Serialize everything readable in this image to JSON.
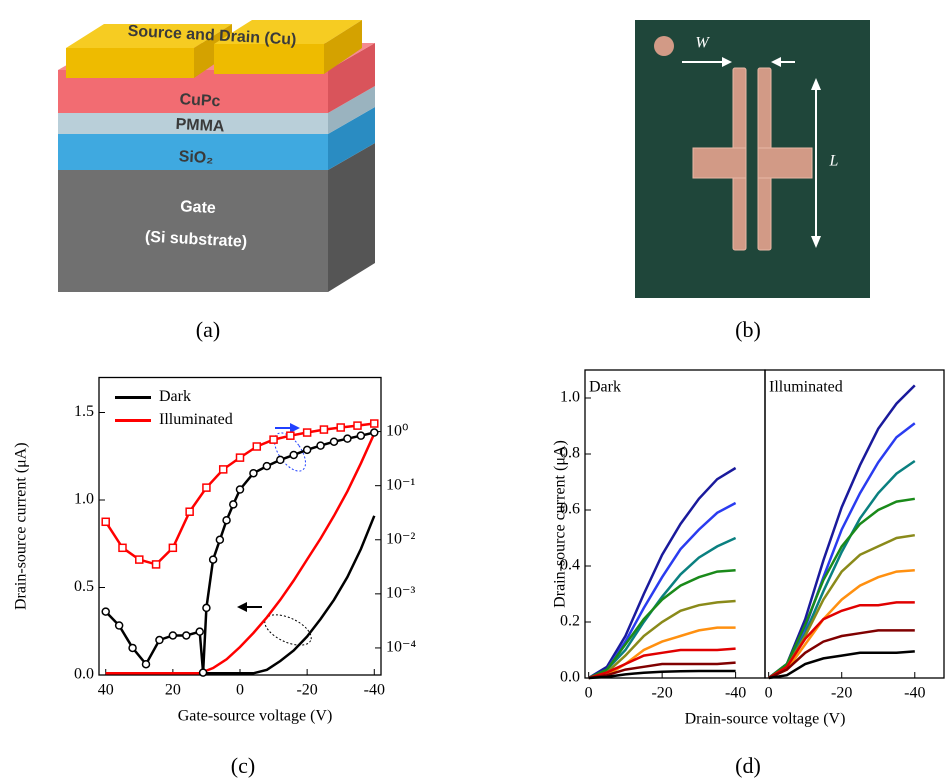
{
  "figure": {
    "a": {
      "labels": {
        "electrodes": "Source and Drain (Cu)",
        "semiconductor": "CuPc",
        "buffer": "PMMA",
        "dielectric": "SiO₂",
        "gate": "Gate",
        "gate_material": "(Si substrate)"
      },
      "caption": "(a)"
    },
    "b": {
      "labels": {
        "width": "W",
        "length": "L"
      },
      "caption": "(b)"
    },
    "c": {
      "caption": "(c)"
    },
    "d": {
      "caption": "(d)"
    }
  },
  "chart_data": [
    {
      "type": "line",
      "xlabel": "Gate-source voltage (V)",
      "ylabel": "Drain-source current (μA)",
      "xlim": [
        42,
        -42
      ],
      "xticks": [
        40,
        20,
        0,
        -20,
        -40
      ],
      "ylim": [
        0,
        1.7
      ],
      "yticks": [
        {
          "value": 0,
          "label": "0.0"
        },
        0.5,
        {
          "value": 1,
          "label": "1.0"
        },
        1.5
      ],
      "y2lim": [
        3.16e-05,
        10
      ],
      "y2scale": "log",
      "y2ticks": [
        {
          "value": 0.0001,
          "label": "10⁻⁴"
        },
        {
          "value": 0.001,
          "label": "10⁻³"
        },
        {
          "value": 0.01,
          "label": "10⁻²"
        },
        {
          "value": 0.1,
          "label": "10⁻¹"
        },
        {
          "value": 1,
          "label": "10⁰"
        }
      ],
      "legend": "upper left",
      "series": [
        {
          "name": "Dark",
          "color": "#000000",
          "axis": "y",
          "x": [
            40,
            36,
            32,
            28,
            24,
            20,
            16,
            12,
            8,
            4,
            0,
            -4,
            -8,
            -12,
            -16,
            -20,
            -24,
            -28,
            -32,
            -36,
            -40
          ],
          "values": [
            0.01,
            0.01,
            0.01,
            0.01,
            0.01,
            0.01,
            0.01,
            0.01,
            0.01,
            0.01,
            0.01,
            0.01,
            0.03,
            0.08,
            0.14,
            0.22,
            0.32,
            0.43,
            0.56,
            0.72,
            0.91
          ]
        },
        {
          "name": "Illuminated",
          "color": "#ff0000",
          "axis": "y",
          "x": [
            40,
            36,
            32,
            28,
            24,
            20,
            16,
            12,
            8,
            4,
            0,
            -4,
            -8,
            -12,
            -16,
            -20,
            -24,
            -28,
            -32,
            -36,
            -40
          ],
          "values": [
            0.01,
            0.01,
            0.01,
            0.01,
            0.01,
            0.01,
            0.01,
            0.01,
            0.04,
            0.09,
            0.16,
            0.24,
            0.33,
            0.43,
            0.54,
            0.66,
            0.78,
            0.91,
            1.05,
            1.21,
            1.38
          ]
        },
        {
          "color": "#000000",
          "axis": "y2",
          "marker": "circle",
          "x": [
            40,
            36,
            32,
            28,
            24,
            20,
            16,
            12,
            11,
            10,
            8,
            6,
            4,
            2,
            0,
            -4,
            -8,
            -12,
            -16,
            -20,
            -24,
            -28,
            -32,
            -36,
            -40
          ],
          "values": [
            0.00047,
            0.00026,
            0.0001,
            5e-05,
            0.00014,
            0.00017,
            0.00017,
            0.0002,
            3.5e-05,
            0.00055,
            0.0043,
            0.01,
            0.023,
            0.045,
            0.085,
            0.17,
            0.23,
            0.3,
            0.37,
            0.46,
            0.55,
            0.65,
            0.74,
            0.84,
            0.96
          ]
        },
        {
          "color": "#ff0000",
          "axis": "y2",
          "marker": "square",
          "x": [
            40,
            35,
            30,
            25,
            20,
            15,
            10,
            5,
            0,
            -5,
            -10,
            -15,
            -20,
            -25,
            -30,
            -35,
            -40
          ],
          "values": [
            0.0215,
            0.0071,
            0.0043,
            0.0035,
            0.0071,
            0.033,
            0.092,
            0.2,
            0.33,
            0.53,
            0.71,
            0.84,
            0.96,
            1.09,
            1.19,
            1.29,
            1.41
          ]
        }
      ]
    },
    {
      "type": "line",
      "title": "Dark",
      "xlabel": "Drain-source voltage (V)",
      "ylabel": "Drain-source current (μA)",
      "xlim": [
        1,
        -48
      ],
      "xticks": [
        0,
        -20,
        -40
      ],
      "ylim": [
        0,
        1.1
      ],
      "yticks": [
        {
          "value": 0,
          "label": "0.0"
        },
        0.2,
        0.4,
        0.6,
        0.8,
        {
          "value": 1,
          "label": "1.0"
        }
      ],
      "x": [
        0,
        -5,
        -10,
        -15,
        -20,
        -25,
        -30,
        -35,
        -40
      ],
      "series": [
        {
          "color": "#1a1a9c",
          "values": [
            0,
            0.04,
            0.15,
            0.3,
            0.44,
            0.55,
            0.64,
            0.71,
            0.75
          ]
        },
        {
          "color": "#2a3cf0",
          "values": [
            0,
            0.03,
            0.13,
            0.25,
            0.36,
            0.46,
            0.53,
            0.59,
            0.625
          ]
        },
        {
          "color": "#0a8080",
          "values": [
            0,
            0.03,
            0.1,
            0.2,
            0.29,
            0.37,
            0.43,
            0.47,
            0.5
          ]
        },
        {
          "color": "#1a8a1a",
          "values": [
            0,
            0.03,
            0.12,
            0.21,
            0.28,
            0.33,
            0.36,
            0.38,
            0.385
          ]
        },
        {
          "color": "#8a8a1a",
          "values": [
            0,
            0.02,
            0.08,
            0.15,
            0.2,
            0.24,
            0.26,
            0.27,
            0.275
          ]
        },
        {
          "color": "#ff9010",
          "values": [
            0,
            0.01,
            0.05,
            0.1,
            0.13,
            0.15,
            0.17,
            0.18,
            0.18
          ]
        },
        {
          "color": "#e00000",
          "values": [
            0,
            0.02,
            0.05,
            0.08,
            0.09,
            0.1,
            0.1,
            0.1,
            0.105
          ]
        },
        {
          "color": "#800000",
          "values": [
            0,
            0.01,
            0.03,
            0.04,
            0.05,
            0.05,
            0.05,
            0.05,
            0.055
          ]
        },
        {
          "color": "#000000",
          "values": [
            0,
            0.004,
            0.013,
            0.019,
            0.022,
            0.024,
            0.025,
            0.025,
            0.025
          ]
        }
      ]
    },
    {
      "type": "line",
      "title": "Illuminated",
      "xlim": [
        1,
        -48
      ],
      "xticks": [
        0,
        -20,
        -40
      ],
      "ylim": [
        0,
        1.1
      ],
      "x": [
        0,
        -5,
        -10,
        -15,
        -20,
        -25,
        -30,
        -35,
        -40
      ],
      "series": [
        {
          "color": "#1a1a9c",
          "values": [
            0,
            0.05,
            0.21,
            0.42,
            0.61,
            0.76,
            0.89,
            0.98,
            1.045
          ]
        },
        {
          "color": "#2a3cf0",
          "values": [
            0,
            0.05,
            0.18,
            0.36,
            0.53,
            0.66,
            0.77,
            0.86,
            0.91
          ]
        },
        {
          "color": "#0a8080",
          "values": [
            0,
            0.04,
            0.16,
            0.31,
            0.45,
            0.57,
            0.66,
            0.73,
            0.775
          ]
        },
        {
          "color": "#1a8a1a",
          "values": [
            0,
            0.05,
            0.19,
            0.35,
            0.47,
            0.55,
            0.6,
            0.63,
            0.64
          ]
        },
        {
          "color": "#8a8a1a",
          "values": [
            0,
            0.04,
            0.15,
            0.28,
            0.38,
            0.44,
            0.47,
            0.5,
            0.51
          ]
        },
        {
          "color": "#ff9010",
          "values": [
            0,
            0.03,
            0.12,
            0.21,
            0.28,
            0.33,
            0.36,
            0.38,
            0.385
          ]
        },
        {
          "color": "#e00000",
          "values": [
            0,
            0.04,
            0.14,
            0.21,
            0.24,
            0.26,
            0.26,
            0.27,
            0.27
          ]
        },
        {
          "color": "#800000",
          "values": [
            0,
            0.03,
            0.09,
            0.13,
            0.15,
            0.16,
            0.17,
            0.17,
            0.17
          ]
        },
        {
          "color": "#000000",
          "values": [
            0,
            0.01,
            0.05,
            0.07,
            0.08,
            0.09,
            0.09,
            0.09,
            0.095
          ]
        }
      ]
    }
  ]
}
